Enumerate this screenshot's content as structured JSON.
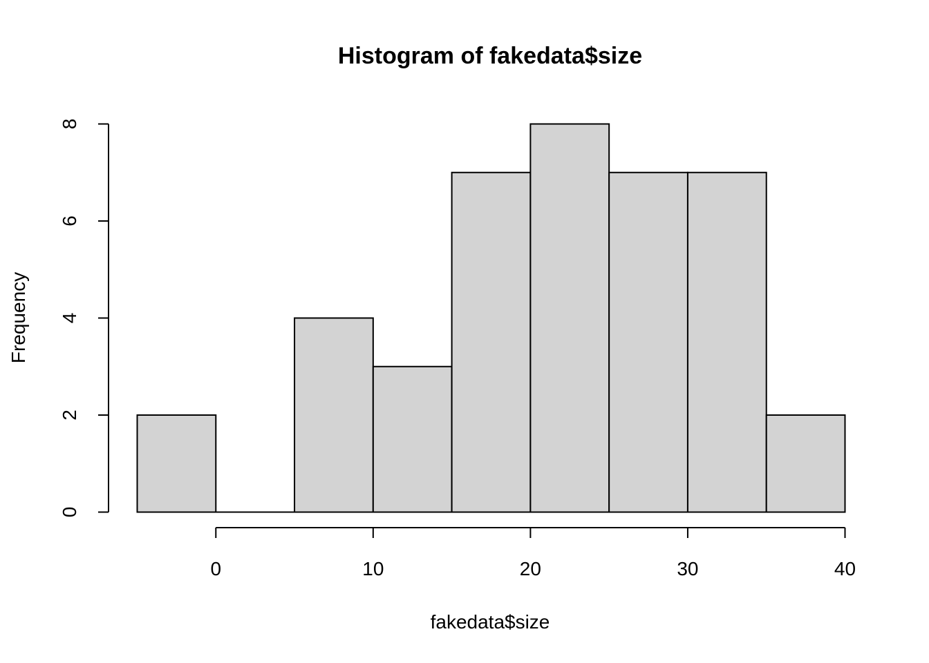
{
  "chart_data": {
    "type": "bar",
    "title": "Histogram of fakedata$size",
    "xlabel": "fakedata$size",
    "ylabel": "Frequency",
    "bins": [
      {
        "start": -5,
        "end": 0,
        "count": 2
      },
      {
        "start": 0,
        "end": 5,
        "count": 0
      },
      {
        "start": 5,
        "end": 10,
        "count": 4
      },
      {
        "start": 10,
        "end": 15,
        "count": 3
      },
      {
        "start": 15,
        "end": 20,
        "count": 7
      },
      {
        "start": 20,
        "end": 25,
        "count": 8
      },
      {
        "start": 25,
        "end": 30,
        "count": 7
      },
      {
        "start": 30,
        "end": 35,
        "count": 7
      },
      {
        "start": 35,
        "end": 40,
        "count": 2
      }
    ],
    "xlim": [
      -5,
      40
    ],
    "ylim": [
      0,
      8
    ],
    "x_ticks": [
      0,
      10,
      20,
      30,
      40
    ],
    "x_tick_labels": [
      "0",
      "10",
      "20",
      "30",
      "40"
    ],
    "y_ticks": [
      0,
      2,
      4,
      6,
      8
    ],
    "y_tick_labels": [
      "0",
      "2",
      "4",
      "6",
      "8"
    ],
    "grid": false,
    "bar_fill": "#d3d3d3",
    "bar_stroke": "#000000"
  }
}
